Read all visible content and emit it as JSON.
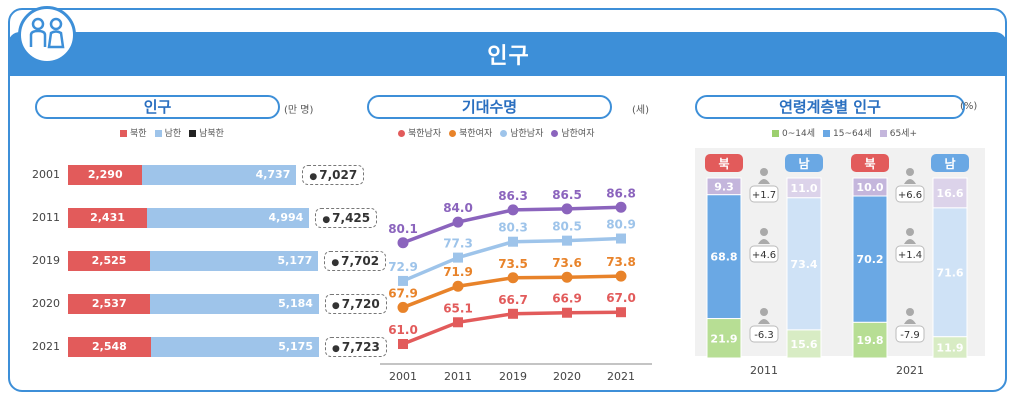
{
  "title": "인구",
  "colors": {
    "brand": "#3d8fd8",
    "north": "#e25b5b",
    "south": "#9ec4ea",
    "nm": "#e25b5b",
    "nf": "#e8832a",
    "sm": "#9ec4ea",
    "sf": "#8b64bd",
    "age0": "#b7de94",
    "age15": "#6aa8e4",
    "age65": "#c4b6dc"
  },
  "population": {
    "title": "인구",
    "unit": "(만 명)",
    "legend": [
      "북한",
      "남한",
      "남북한"
    ],
    "rows": [
      {
        "year": "2001",
        "north": 2290,
        "south": 4737,
        "north_label": "2,290",
        "south_label": "4,737",
        "total_label": "7,027"
      },
      {
        "year": "2011",
        "north": 2431,
        "south": 4994,
        "north_label": "2,431",
        "south_label": "4,994",
        "total_label": "7,425"
      },
      {
        "year": "2019",
        "north": 2525,
        "south": 5177,
        "north_label": "2,525",
        "south_label": "5,177",
        "total_label": "7,702"
      },
      {
        "year": "2020",
        "north": 2537,
        "south": 5184,
        "north_label": "2,537",
        "south_label": "5,184",
        "total_label": "7,720"
      },
      {
        "year": "2021",
        "north": 2548,
        "south": 5175,
        "north_label": "2,548",
        "south_label": "5,175",
        "total_label": "7,723"
      }
    ]
  },
  "life_expectancy": {
    "title": "기대수명",
    "unit": "(세)",
    "legend": [
      "북한남자",
      "북한여자",
      "남한남자",
      "남한여자"
    ]
  },
  "age_structure": {
    "title": "연령계층별 인구",
    "unit": "(%)",
    "legend": [
      "0~14세",
      "15~64세",
      "65세+"
    ],
    "north_label": "북",
    "south_label": "남",
    "groups": [
      {
        "year": "2011",
        "north": {
          "age0": 21.9,
          "age15": 68.8,
          "age65": 9.3
        },
        "south": {
          "age0": 15.6,
          "age15": 73.4,
          "age65": 11.0
        },
        "diff": {
          "age65": "+1.7",
          "age15": "+4.6",
          "age0": "-6.3"
        }
      },
      {
        "year": "2021",
        "north": {
          "age0": 19.8,
          "age15": 70.2,
          "age65": 10.0
        },
        "south": {
          "age0": 11.9,
          "age15": 71.6,
          "age65": 16.6
        },
        "diff": {
          "age65": "+6.6",
          "age15": "+1.4",
          "age0": "-7.9"
        }
      }
    ]
  },
  "chart_data": [
    {
      "type": "bar",
      "title": "인구",
      "ylabel": "(만 명)",
      "categories": [
        "2001",
        "2011",
        "2019",
        "2020",
        "2021"
      ],
      "series": [
        {
          "name": "북한",
          "values": [
            2290,
            2431,
            2525,
            2537,
            2548
          ]
        },
        {
          "name": "남한",
          "values": [
            4737,
            4994,
            5177,
            5184,
            5175
          ]
        },
        {
          "name": "남북한",
          "values": [
            7027,
            7425,
            7702,
            7720,
            7723
          ]
        }
      ]
    },
    {
      "type": "line",
      "title": "기대수명",
      "ylabel": "(세)",
      "x": [
        "2001",
        "2011",
        "2019",
        "2020",
        "2021"
      ],
      "series": [
        {
          "name": "북한남자",
          "values": [
            61.0,
            65.1,
            66.7,
            66.9,
            67.0
          ]
        },
        {
          "name": "북한여자",
          "values": [
            67.9,
            71.9,
            73.5,
            73.6,
            73.8
          ]
        },
        {
          "name": "남한남자",
          "values": [
            72.9,
            77.3,
            80.3,
            80.5,
            80.9
          ]
        },
        {
          "name": "남한여자",
          "values": [
            80.1,
            84.0,
            86.3,
            86.5,
            86.8
          ]
        }
      ]
    },
    {
      "type": "bar",
      "title": "연령계층별 인구",
      "ylabel": "(%)",
      "categories": [
        "2011 북",
        "2011 남",
        "2021 북",
        "2021 남"
      ],
      "series": [
        {
          "name": "0~14세",
          "values": [
            21.9,
            15.6,
            19.8,
            11.9
          ]
        },
        {
          "name": "15~64세",
          "values": [
            68.8,
            73.4,
            70.2,
            71.6
          ]
        },
        {
          "name": "65세+",
          "values": [
            9.3,
            11.0,
            10.0,
            16.6
          ]
        }
      ]
    }
  ]
}
